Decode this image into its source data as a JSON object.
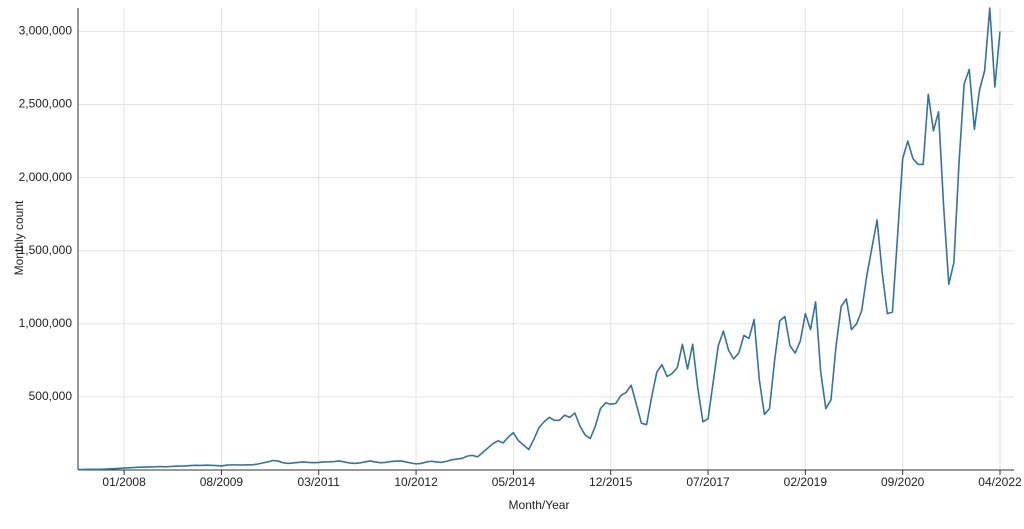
{
  "chart_data": {
    "type": "line",
    "x_label": "Month/Year",
    "y_label": "Monthly count",
    "x": [
      "04/2007",
      "05/2007",
      "06/2007",
      "07/2007",
      "08/2007",
      "09/2007",
      "10/2007",
      "11/2007",
      "12/2007",
      "01/2008",
      "02/2008",
      "03/2008",
      "04/2008",
      "05/2008",
      "06/2008",
      "07/2008",
      "08/2008",
      "09/2008",
      "10/2008",
      "11/2008",
      "12/2008",
      "01/2009",
      "02/2009",
      "03/2009",
      "04/2009",
      "05/2009",
      "06/2009",
      "07/2009",
      "08/2009",
      "09/2009",
      "10/2009",
      "11/2009",
      "12/2009",
      "01/2010",
      "02/2010",
      "03/2010",
      "04/2010",
      "05/2010",
      "06/2010",
      "07/2010",
      "08/2010",
      "09/2010",
      "10/2010",
      "11/2010",
      "12/2010",
      "01/2011",
      "02/2011",
      "03/2011",
      "04/2011",
      "05/2011",
      "06/2011",
      "07/2011",
      "08/2011",
      "09/2011",
      "10/2011",
      "11/2011",
      "12/2011",
      "01/2012",
      "02/2012",
      "03/2012",
      "04/2012",
      "05/2012",
      "06/2012",
      "07/2012",
      "08/2012",
      "09/2012",
      "10/2012",
      "11/2012",
      "12/2012",
      "01/2013",
      "02/2013",
      "03/2013",
      "04/2013",
      "05/2013",
      "06/2013",
      "07/2013",
      "08/2013",
      "09/2013",
      "10/2013",
      "11/2013",
      "12/2013",
      "01/2014",
      "02/2014",
      "03/2014",
      "04/2014",
      "05/2014",
      "06/2014",
      "07/2014",
      "08/2014",
      "09/2014",
      "10/2014",
      "11/2014",
      "12/2014",
      "01/2015",
      "02/2015",
      "03/2015",
      "04/2015",
      "05/2015",
      "06/2015",
      "07/2015",
      "08/2015",
      "09/2015",
      "10/2015",
      "11/2015",
      "12/2015",
      "01/2016",
      "02/2016",
      "03/2016",
      "04/2016",
      "05/2016",
      "06/2016",
      "07/2016",
      "08/2016",
      "09/2016",
      "10/2016",
      "11/2016",
      "12/2016",
      "01/2017",
      "02/2017",
      "03/2017",
      "04/2017",
      "05/2017",
      "06/2017",
      "07/2017",
      "08/2017",
      "09/2017",
      "10/2017",
      "11/2017",
      "12/2017",
      "01/2018",
      "02/2018",
      "03/2018",
      "04/2018",
      "05/2018",
      "06/2018",
      "07/2018",
      "08/2018",
      "09/2018",
      "10/2018",
      "11/2018",
      "12/2018",
      "01/2019",
      "02/2019",
      "03/2019",
      "04/2019",
      "05/2019",
      "06/2019",
      "07/2019",
      "08/2019",
      "09/2019",
      "10/2019",
      "11/2019",
      "12/2019",
      "01/2020",
      "02/2020",
      "03/2020",
      "04/2020",
      "05/2020",
      "06/2020",
      "07/2020",
      "08/2020",
      "09/2020",
      "10/2020",
      "11/2020",
      "12/2020",
      "01/2021",
      "02/2021",
      "03/2021",
      "04/2021",
      "05/2021",
      "06/2021",
      "07/2021",
      "08/2021",
      "09/2021",
      "10/2021",
      "11/2021",
      "12/2021",
      "01/2022",
      "02/2022",
      "03/2022",
      "04/2022"
    ],
    "series": [
      {
        "name": "Monthly count",
        "color": "#3274a1",
        "values": [
          2000,
          4000,
          5000,
          5000,
          5000,
          6000,
          7000,
          9000,
          11000,
          13000,
          15000,
          17000,
          19000,
          20000,
          21000,
          22000,
          24000,
          22000,
          24000,
          26000,
          27000,
          28000,
          30000,
          32000,
          31000,
          33000,
          32000,
          30000,
          28000,
          33000,
          35000,
          35000,
          34000,
          36000,
          35000,
          40000,
          48000,
          55000,
          65000,
          62000,
          50000,
          45000,
          48000,
          52000,
          55000,
          52000,
          50000,
          52000,
          55000,
          56000,
          58000,
          62000,
          55000,
          48000,
          45000,
          48000,
          55000,
          62000,
          55000,
          50000,
          52000,
          58000,
          60000,
          62000,
          55000,
          48000,
          42000,
          45000,
          55000,
          60000,
          55000,
          52000,
          60000,
          70000,
          75000,
          80000,
          95000,
          100000,
          90000,
          120000,
          150000,
          180000,
          200000,
          185000,
          225000,
          255000,
          200000,
          170000,
          140000,
          210000,
          290000,
          330000,
          360000,
          340000,
          340000,
          375000,
          360000,
          390000,
          300000,
          240000,
          215000,
          300000,
          420000,
          460000,
          450000,
          455000,
          510000,
          530000,
          580000,
          450000,
          320000,
          310000,
          500000,
          670000,
          720000,
          640000,
          660000,
          700000,
          860000,
          690000,
          860000,
          560000,
          330000,
          350000,
          600000,
          850000,
          950000,
          820000,
          760000,
          800000,
          920000,
          900000,
          1030000,
          620000,
          380000,
          420000,
          750000,
          1020000,
          1050000,
          850000,
          800000,
          880000,
          1070000,
          960000,
          1150000,
          670000,
          420000,
          480000,
          850000,
          1120000,
          1170000,
          960000,
          1000000,
          1090000,
          1330000,
          1520000,
          1710000,
          1350000,
          1070000,
          1080000,
          1600000,
          2130000,
          2250000,
          2130000,
          2090000,
          2090000,
          2570000,
          2320000,
          2450000,
          1800000,
          1270000,
          1420000,
          2100000,
          2640000,
          2740000,
          2330000,
          2600000,
          2730000,
          3160000,
          2620000,
          3000000
        ]
      }
    ],
    "xlim": [
      "04/2007",
      "04/2022"
    ],
    "xticks": [
      "01/2008",
      "08/2009",
      "03/2011",
      "10/2012",
      "05/2014",
      "12/2015",
      "07/2017",
      "02/2019",
      "09/2020",
      "04/2022"
    ],
    "ylim": [
      0,
      3160000
    ],
    "yticks": [
      {
        "value": 500000,
        "label": "500,000"
      },
      {
        "value": 1000000,
        "label": "1,000,000"
      },
      {
        "value": 1500000,
        "label": "1,500,000"
      },
      {
        "value": 2000000,
        "label": "2,000,000"
      },
      {
        "value": 2500000,
        "label": "2,500,000"
      },
      {
        "value": 3000000,
        "label": "3,000,000"
      }
    ],
    "grid": true
  }
}
